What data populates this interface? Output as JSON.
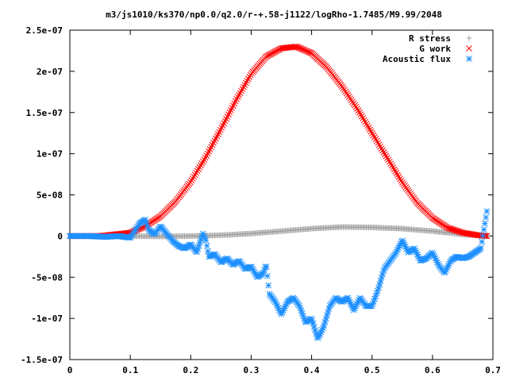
{
  "chart_data": {
    "type": "scatter",
    "title": "m3/js1010/ks370/np0.0/q2.0/r-+.58-j1122/logRho-1.7485/M9.99/2048",
    "xlabel": "",
    "ylabel": "",
    "xlim": [
      0,
      0.7
    ],
    "ylim": [
      -1.5e-07,
      2.5e-07
    ],
    "x_ticks": [
      0,
      0.1,
      0.2,
      0.3,
      0.4,
      0.5,
      0.6,
      0.7
    ],
    "x_tick_labels": [
      "0",
      "0.1",
      "0.2",
      "0.3",
      "0.4",
      "0.5",
      "0.6",
      "0.7"
    ],
    "y_ticks": [
      -1.5e-07,
      -1e-07,
      -5e-08,
      0,
      5e-08,
      1e-07,
      1.5e-07,
      2e-07,
      2.5e-07
    ],
    "y_tick_labels": [
      "-1.5e-07",
      "-1e-07",
      "-5e-08",
      "0",
      "5e-08",
      "1e-07",
      "1.5e-07",
      "2e-07",
      "2.5e-07"
    ],
    "grid": false,
    "legend_position": "top-right",
    "series": [
      {
        "name": "R stress",
        "marker": "+",
        "color": "#a0a0a0",
        "x": [
          0.0,
          0.05,
          0.1,
          0.15,
          0.2,
          0.25,
          0.3,
          0.35,
          0.4,
          0.45,
          0.5,
          0.55,
          0.6,
          0.65,
          0.69
        ],
        "y": [
          0,
          0,
          0,
          -5e-10,
          0,
          1e-09,
          3e-09,
          6e-09,
          9e-09,
          1.1e-08,
          1.05e-08,
          9e-09,
          6e-09,
          2e-09,
          0
        ]
      },
      {
        "name": "G work",
        "marker": "x",
        "color": "#ff0000",
        "x": [
          0.0,
          0.05,
          0.1,
          0.125,
          0.15,
          0.175,
          0.2,
          0.225,
          0.25,
          0.275,
          0.3,
          0.325,
          0.35,
          0.375,
          0.4,
          0.425,
          0.45,
          0.475,
          0.5,
          0.525,
          0.55,
          0.575,
          0.6,
          0.625,
          0.65,
          0.675,
          0.69
        ],
        "y": [
          0,
          0,
          4e-09,
          1.2e-08,
          2.4e-08,
          4.2e-08,
          6.6e-08,
          9.6e-08,
          1.3e-07,
          1.65e-07,
          1.97e-07,
          2.18e-07,
          2.28e-07,
          2.3e-07,
          2.22e-07,
          2.05e-07,
          1.82e-07,
          1.55e-07,
          1.25e-07,
          9.5e-08,
          6.5e-08,
          4e-08,
          2.2e-08,
          1e-08,
          4e-09,
          1e-09,
          0
        ]
      },
      {
        "name": "Acoustic flux",
        "marker": "*",
        "color": "#1e90ff",
        "x": [
          0.0,
          0.03,
          0.06,
          0.08,
          0.1,
          0.115,
          0.125,
          0.13,
          0.14,
          0.15,
          0.16,
          0.17,
          0.18,
          0.19,
          0.2,
          0.21,
          0.22,
          0.225,
          0.23,
          0.24,
          0.25,
          0.26,
          0.27,
          0.28,
          0.29,
          0.3,
          0.31,
          0.32,
          0.325,
          0.33,
          0.34,
          0.35,
          0.36,
          0.37,
          0.38,
          0.39,
          0.4,
          0.41,
          0.42,
          0.43,
          0.44,
          0.45,
          0.46,
          0.47,
          0.48,
          0.49,
          0.5,
          0.51,
          0.52,
          0.53,
          0.54,
          0.55,
          0.56,
          0.57,
          0.58,
          0.59,
          0.6,
          0.61,
          0.62,
          0.63,
          0.64,
          0.65,
          0.66,
          0.67,
          0.68,
          0.69
        ],
        "y": [
          0,
          0,
          -1e-09,
          0,
          -2e-09,
          1.5e-08,
          2e-08,
          8e-09,
          2e-09,
          1.2e-08,
          3e-09,
          -6e-09,
          -1.2e-08,
          -1.5e-08,
          -1e-08,
          -2e-08,
          3e-09,
          -5e-09,
          -2.5e-08,
          -2.2e-08,
          -3.2e-08,
          -2.7e-08,
          -3.5e-08,
          -3e-08,
          -4e-08,
          -3.7e-08,
          -5e-08,
          -4.5e-08,
          -3.5e-08,
          -7e-08,
          -8e-08,
          -9.5e-08,
          -8e-08,
          -7.5e-08,
          -8.5e-08,
          -1.05e-07,
          -1e-07,
          -1.25e-07,
          -1.1e-07,
          -8.5e-08,
          -7.5e-08,
          -8e-08,
          -7.5e-08,
          -9e-08,
          -7.5e-08,
          -8.5e-08,
          -8.5e-08,
          -6.5e-08,
          -4e-08,
          -3e-08,
          -2e-08,
          -5e-09,
          -2e-08,
          -1.5e-08,
          -3e-08,
          -2.7e-08,
          -2e-08,
          -3.5e-08,
          -4.5e-08,
          -3e-08,
          -2.5e-08,
          -2.7e-08,
          -2.5e-08,
          -2e-08,
          -1.5e-08,
          3e-08
        ]
      }
    ]
  }
}
